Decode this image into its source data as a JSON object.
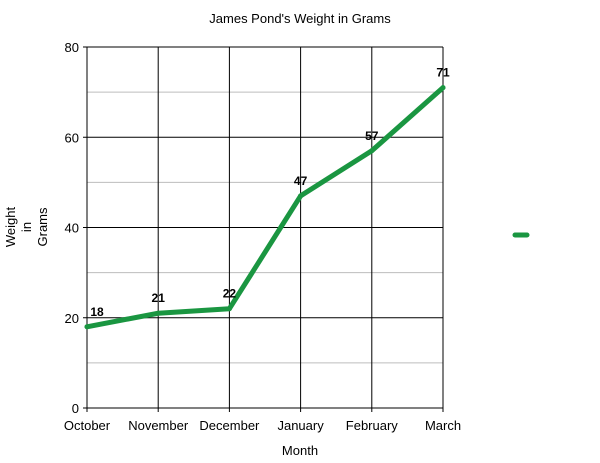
{
  "chart_data": {
    "type": "line",
    "title": "James Pond's Weight in Grams",
    "xlabel": "Month",
    "ylabel_lines": [
      "Weight",
      "in",
      "Grams"
    ],
    "categories": [
      "October",
      "November",
      "December",
      "January",
      "February",
      "March"
    ],
    "series": [
      {
        "values": [
          18,
          21,
          22,
          47,
          57,
          71
        ],
        "color": "#1a9641"
      }
    ],
    "ylim": [
      0,
      80
    ],
    "y_ticks": [
      0,
      20,
      40,
      60,
      80
    ],
    "y_minor_ticks": [
      10,
      30,
      50,
      70
    ],
    "grid": true,
    "legend": "right"
  }
}
